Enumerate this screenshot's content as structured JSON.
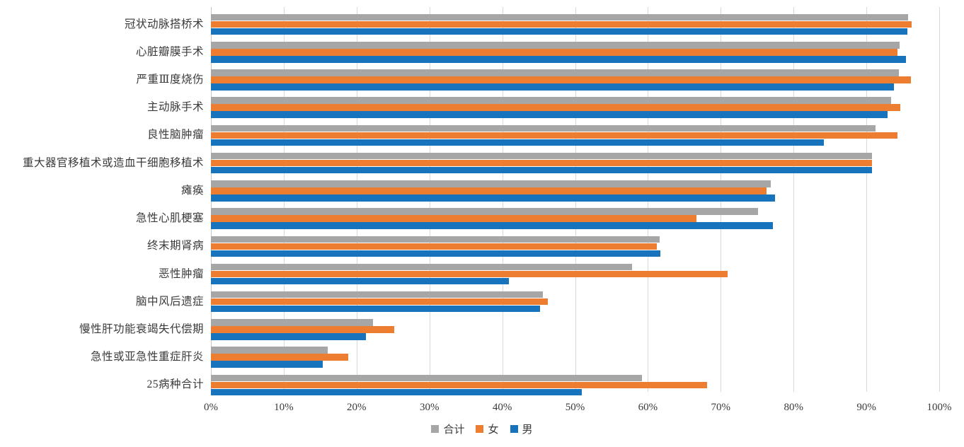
{
  "chart_data": {
    "type": "bar",
    "orientation": "horizontal",
    "title": "",
    "categories": [
      "冠状动脉搭桥术",
      "心脏瓣膜手术",
      "严重Ⅲ度烧伤",
      "主动脉手术",
      "良性脑肿瘤",
      "重大器官移植术或造血干细胞移植术",
      "瘫痪",
      "急性心肌梗塞",
      "终末期肾病",
      "恶性肿瘤",
      "脑中风后遗症",
      "慢性肝功能衰竭失代偿期",
      "急性或亚急性重症肝炎",
      "25病种合计"
    ],
    "series": [
      {
        "name": "合计",
        "color": "#a6a6a6",
        "values": [
          95.7,
          94.6,
          94.5,
          93.4,
          91.3,
          90.8,
          76.9,
          75.1,
          61.6,
          57.8,
          45.6,
          22.3,
          16.0,
          59.2
        ]
      },
      {
        "name": "女",
        "color": "#ed7d31",
        "values": [
          96.2,
          94.3,
          96.1,
          94.7,
          94.3,
          90.8,
          76.3,
          66.7,
          61.2,
          70.9,
          46.3,
          25.2,
          18.9,
          68.1
        ]
      },
      {
        "name": "男",
        "color": "#1673bc",
        "values": [
          95.6,
          95.4,
          93.8,
          92.9,
          84.2,
          90.8,
          77.5,
          77.2,
          61.7,
          40.9,
          45.2,
          21.3,
          15.4,
          50.9
        ]
      }
    ],
    "x_axis": {
      "min": 0,
      "max": 100,
      "tick_step": 10,
      "tick_labels": [
        "0%",
        "10%",
        "20%",
        "30%",
        "40%",
        "50%",
        "60%",
        "70%",
        "80%",
        "90%",
        "100%"
      ],
      "unit": "%"
    },
    "legend": {
      "position": "bottom",
      "entries": [
        "合计",
        "女",
        "男"
      ]
    },
    "grid": "vertical",
    "bar_group_order_top_to_bottom": [
      "合计",
      "女",
      "男"
    ]
  },
  "colors": {
    "background": "#ffffff",
    "gridline": "#d9d9d9",
    "axis_line": "#c6c6c6",
    "text": "#3a3a3a"
  }
}
